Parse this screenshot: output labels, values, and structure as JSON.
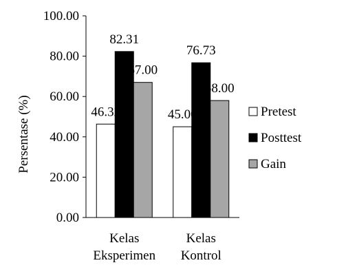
{
  "chart_data": {
    "type": "bar",
    "title": "",
    "xlabel": "",
    "ylabel": "Persentase (%)",
    "ylim": [
      0,
      100
    ],
    "yticks": [
      "0.00",
      "20.00",
      "40.00",
      "60.00",
      "80.00",
      "100.00"
    ],
    "categories": [
      [
        "Kelas",
        "Eksperimen"
      ],
      [
        "Kelas",
        "Kontrol"
      ]
    ],
    "series": [
      {
        "name": "Pretest",
        "values": [
          46.32,
          45.0
        ],
        "labels": [
          "46.32",
          "45.00"
        ],
        "color": "#ffffff"
      },
      {
        "name": "Posttest",
        "values": [
          82.31,
          76.73
        ],
        "labels": [
          "82.31",
          "76.73"
        ],
        "color": "#000000"
      },
      {
        "name": "Gain",
        "values": [
          67.0,
          58.0
        ],
        "labels": [
          "67.00",
          "58.00"
        ],
        "color": "#a6a6a6"
      }
    ],
    "grid": false,
    "legend_position": "right"
  }
}
